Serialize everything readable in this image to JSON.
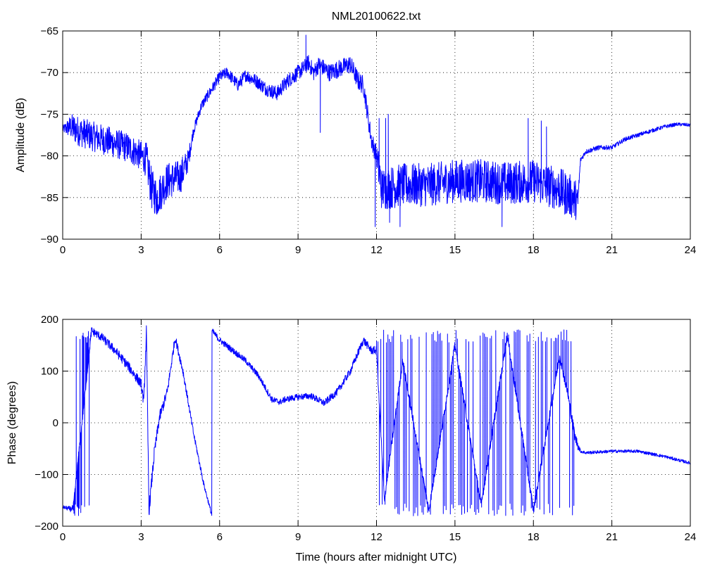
{
  "chart_data": [
    {
      "type": "line",
      "title": "NML20100622.txt",
      "xlabel": "",
      "ylabel": "Amplitude (dB)",
      "xlim": [
        0,
        24
      ],
      "ylim": [
        -90,
        -65
      ],
      "xticks": [
        0,
        3,
        6,
        9,
        12,
        15,
        18,
        21,
        24
      ],
      "yticks": [
        -90,
        -85,
        -80,
        -75,
        -70,
        -65
      ],
      "grid": true,
      "series": [
        {
          "color": "#0000ff",
          "noise_profile": [
            [
              0,
              0.4
            ],
            [
              0.4,
              1.8
            ],
            [
              3.1,
              1.8
            ],
            [
              3.3,
              2.5
            ],
            [
              4.6,
              2.0
            ],
            [
              5.0,
              0.6
            ],
            [
              12.0,
              1.2
            ],
            [
              12.1,
              2.6
            ],
            [
              19.6,
              2.6
            ],
            [
              19.8,
              0.3
            ],
            [
              24,
              0.2
            ]
          ],
          "x": [
            0,
            0.3,
            0.6,
            1.0,
            1.5,
            2.0,
            2.5,
            3.0,
            3.2,
            3.4,
            3.6,
            4.0,
            4.5,
            4.8,
            5.0,
            5.3,
            5.7,
            6.0,
            6.3,
            6.7,
            7.0,
            7.4,
            7.8,
            8.2,
            8.6,
            9.0,
            9.2,
            9.4,
            9.6,
            9.8,
            10.2,
            10.6,
            11.0,
            11.3,
            11.5,
            11.8,
            12.0,
            12.2,
            13.0,
            14.0,
            15.0,
            16.0,
            17.0,
            18.0,
            18.5,
            19.0,
            19.5,
            19.7,
            19.8,
            20.0,
            20.5,
            21.0,
            21.5,
            22.0,
            22.5,
            23.0,
            23.5,
            24.0
          ],
          "y": [
            -76.8,
            -76.5,
            -77.0,
            -77.5,
            -78.0,
            -78.5,
            -79.0,
            -80.0,
            -80.5,
            -84.0,
            -85.0,
            -83.0,
            -82.5,
            -80.5,
            -77.0,
            -74.0,
            -72.0,
            -70.5,
            -70.0,
            -71.5,
            -70.3,
            -71.0,
            -72.0,
            -72.5,
            -71.0,
            -70.0,
            -69.5,
            -68.8,
            -70.0,
            -69.0,
            -70.0,
            -69.5,
            -69.0,
            -71.0,
            -71.5,
            -78.0,
            -80.0,
            -84.0,
            -83.5,
            -83.5,
            -83.0,
            -83.0,
            -83.3,
            -83.0,
            -83.5,
            -84.0,
            -85.0,
            -85.5,
            -80.5,
            -79.5,
            -79.0,
            -79.0,
            -78.0,
            -77.5,
            -77.0,
            -76.5,
            -76.2,
            -76.3
          ],
          "spikes": [
            [
              3.6,
              -87.0
            ],
            [
              9.3,
              -65.5
            ],
            [
              9.85,
              -77.2
            ],
            [
              12.1,
              -75.5
            ],
            [
              12.35,
              -75.5
            ],
            [
              12.45,
              -75.0
            ],
            [
              12.9,
              -88.5
            ],
            [
              12.5,
              -88.0
            ],
            [
              16.8,
              -88.5
            ],
            [
              17.8,
              -75.5
            ],
            [
              18.3,
              -75.8
            ],
            [
              18.5,
              -76.5
            ],
            [
              19.2,
              -87.0
            ],
            [
              11.95,
              -88.5
            ]
          ]
        }
      ]
    },
    {
      "type": "line",
      "title": "",
      "xlabel": "Time (hours after midnight UTC)",
      "ylabel": "Phase (degrees)",
      "xlim": [
        0,
        24
      ],
      "ylim": [
        -200,
        200
      ],
      "xticks": [
        0,
        3,
        6,
        9,
        12,
        15,
        18,
        21,
        24
      ],
      "yticks": [
        -200,
        -100,
        0,
        100,
        200
      ],
      "grid": true,
      "series": [
        {
          "color": "#0000ff",
          "noise_profile": [
            [
              0,
              3
            ],
            [
              0.4,
              6
            ],
            [
              1.1,
              8
            ],
            [
              3.0,
              10
            ],
            [
              3.2,
              14
            ],
            [
              4.0,
              10
            ],
            [
              5.6,
              4
            ],
            [
              5.8,
              6
            ],
            [
              9.0,
              6
            ],
            [
              12.0,
              8
            ],
            [
              19.7,
              10
            ],
            [
              19.8,
              3
            ],
            [
              24,
              3
            ]
          ],
          "x": [
            0,
            0.3,
            0.4,
            1.1,
            1.5,
            2.0,
            2.5,
            3.0,
            3.1,
            3.2,
            3.3,
            3.5,
            3.7,
            4.0,
            4.2,
            4.3,
            4.6,
            5.0,
            5.4,
            5.7,
            5.71,
            6.0,
            6.5,
            7.0,
            7.5,
            8.0,
            8.3,
            8.5,
            9.0,
            9.5,
            10.0,
            10.5,
            11.0,
            11.5,
            11.8,
            12.0,
            12.3,
            13.0,
            14.0,
            15.0,
            16.0,
            17.0,
            18.0,
            19.0,
            19.3,
            19.6,
            19.8,
            20.0,
            21.0,
            22.0,
            23.0,
            24.0
          ],
          "y": [
            -163,
            -167,
            -165,
            178,
            165,
            140,
            110,
            75,
            40,
            175,
            -170,
            -60,
            10,
            60,
            130,
            165,
            100,
            -20,
            -120,
            -178,
            178,
            160,
            140,
            120,
            90,
            45,
            40,
            45,
            50,
            52,
            38,
            60,
            100,
            160,
            140,
            140,
            -150,
            120,
            -170,
            150,
            -160,
            170,
            -170,
            130,
            60,
            -30,
            -55,
            -58,
            -55,
            -55,
            -65,
            -78
          ],
          "oscillation_segments": [
            {
              "range": [
                0.4,
                1.1
              ],
              "levels": [
                -180,
                178
              ],
              "count": 24
            },
            {
              "range": [
                12.0,
                19.6
              ],
              "levels": [
                -180,
                180
              ],
              "count": 140
            }
          ]
        }
      ]
    }
  ]
}
